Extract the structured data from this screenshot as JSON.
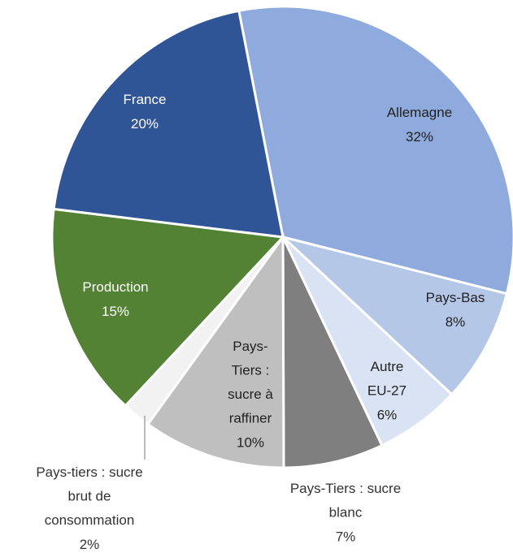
{
  "chart_data": {
    "type": "pie",
    "categories": [
      "Allemagne",
      "Pays-Bas",
      "Autre EU-27",
      "Pays-Tiers : sucre blanc",
      "Pays-Tiers : sucre à raffiner",
      "Pays-tiers : sucre brut de consommation",
      "Production",
      "France"
    ],
    "values": [
      32,
      8,
      6,
      7,
      10,
      2,
      15,
      20
    ],
    "value_labels": [
      "32%",
      "8%",
      "6%",
      "7%",
      "10%",
      "2%",
      "15%",
      "20%"
    ],
    "colors": [
      "#8faadc",
      "#b4c7e7",
      "#dae3f3",
      "#7f7f7f",
      "#bfbfbf",
      "#f2f2f2",
      "#548235",
      "#2f5597"
    ]
  }
}
